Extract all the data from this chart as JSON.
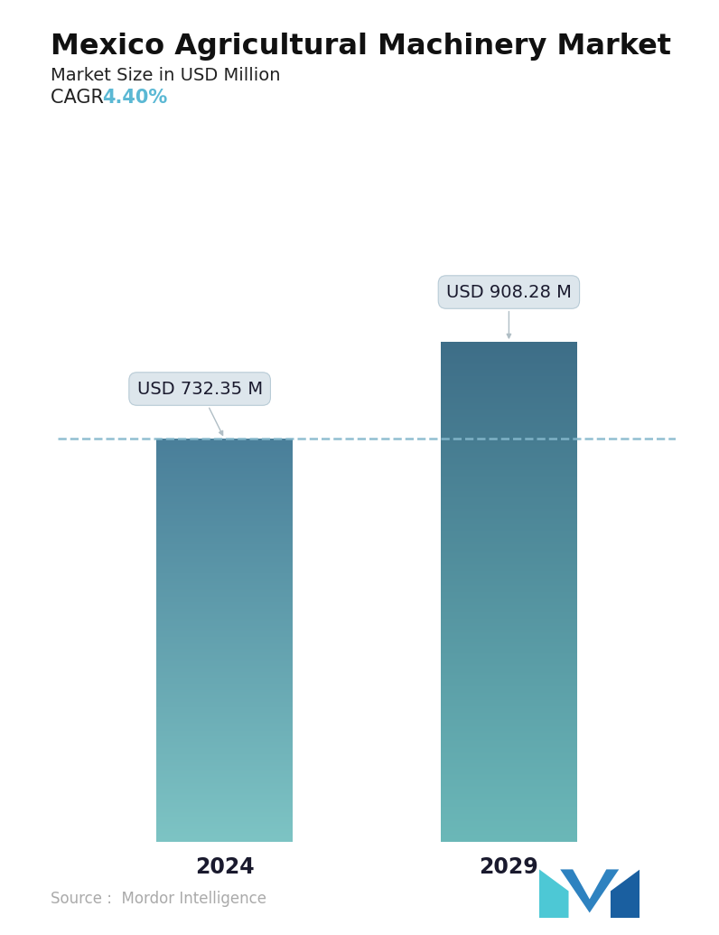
{
  "title": "Mexico Agricultural Machinery Market",
  "subtitle": "Market Size in USD Million",
  "cagr_label": "CAGR ",
  "cagr_value": "4.40%",
  "cagr_color": "#5BB8D4",
  "categories": [
    "2024",
    "2029"
  ],
  "values": [
    732.35,
    908.28
  ],
  "labels": [
    "USD 732.35 M",
    "USD 908.28 M"
  ],
  "bar1_top_color": "#4A7F9A",
  "bar1_bot_color": "#7DC4C4",
  "bar2_top_color": "#3E6E88",
  "bar2_bot_color": "#6BB8B8",
  "dashed_line_color": "#85B8CC",
  "dashed_line_value": 732.35,
  "background_color": "#FFFFFF",
  "source_text": "Source :  Mordor Intelligence",
  "source_color": "#AAAAAA",
  "title_fontsize": 23,
  "subtitle_fontsize": 14,
  "cagr_fontsize": 15,
  "tick_fontsize": 17,
  "label_fontsize": 14,
  "ylim_max": 1020,
  "bar_width": 0.22
}
